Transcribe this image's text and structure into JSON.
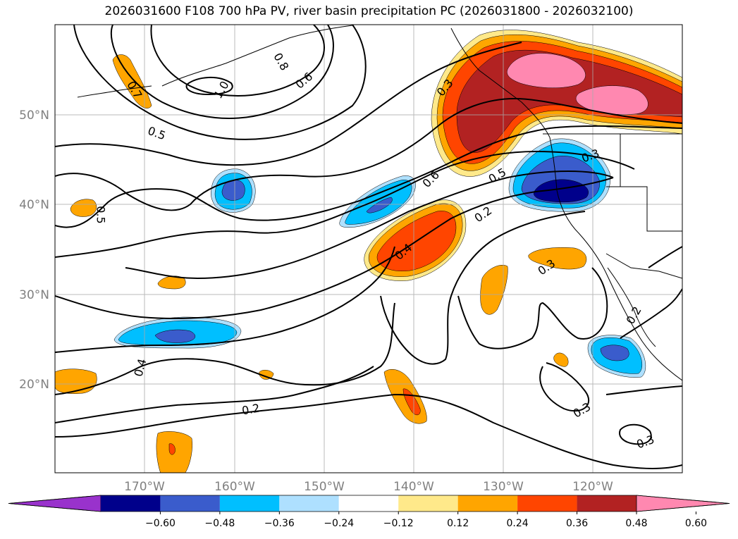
{
  "title": "2026031600 F108 700 hPa PV, river basin precipitation PC (2026031800 - 2026032100)",
  "map": {
    "lon_range": [
      -180,
      -110
    ],
    "lat_range": [
      10,
      60
    ],
    "gridlines": true,
    "lat_labels": [
      "50°N",
      "40°N",
      "30°N",
      "20°N"
    ],
    "lon_labels": [
      "170°W",
      "160°W",
      "150°W",
      "140°W",
      "130°W",
      "120°W"
    ],
    "contour_labels": [
      "0.7",
      "0.8",
      "1.0",
      "0.6",
      "0.5",
      "0.5",
      "0.3",
      "0.6",
      "0.5",
      "0.3",
      "0.2",
      "0.4",
      "0.3",
      "0.2",
      "0.4",
      "0.2",
      "0.3",
      "0.3"
    ],
    "colors": {
      "shade_pos_1": "#ffe98a",
      "shade_pos_2": "#ffa500",
      "shade_pos_3": "#ff4500",
      "shade_pos_4": "#b22222",
      "shade_pos_5": "#ff88b0",
      "shade_neg_1": "#aee0ff",
      "shade_neg_2": "#00bfff",
      "shade_neg_3": "#3a5ccc",
      "shade_neg_4": "#00008b",
      "contour": "#000000"
    }
  },
  "colorbar": {
    "ticks": [
      "−0.60",
      "−0.48",
      "−0.36",
      "−0.24",
      "−0.12",
      "0.12",
      "0.24",
      "0.36",
      "0.48",
      "0.60"
    ],
    "colors": [
      "#9932cc",
      "#00008b",
      "#3a5ccc",
      "#00bfff",
      "#aee0ff",
      "#ffffff",
      "#ffe98a",
      "#ffa500",
      "#ff4500",
      "#b22222",
      "#ff88b0",
      "#ff88b0"
    ]
  }
}
